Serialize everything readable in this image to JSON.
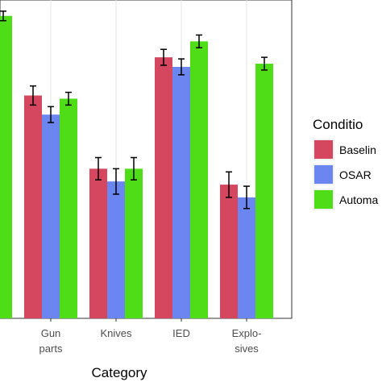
{
  "chart_data": {
    "type": "bar",
    "xlabel": "Category",
    "ylabel": "",
    "categories": [
      {
        "lines": [
          "s"
        ]
      },
      {
        "lines": [
          "Gun",
          "parts"
        ]
      },
      {
        "lines": [
          "Knives"
        ]
      },
      {
        "lines": [
          "IED"
        ]
      },
      {
        "lines": [
          "Explo-",
          "sives"
        ]
      }
    ],
    "ylim": [
      0,
      1
    ],
    "grid": true,
    "legend": {
      "title": "Conditio",
      "placement": "right",
      "entries": [
        "Baselin",
        "OSAR",
        "Automa"
      ]
    },
    "series": [
      {
        "name": "Baselin",
        "color": "#d4475f",
        "values": [
          null,
          0.7,
          0.47,
          0.82,
          0.42
        ],
        "err": [
          null,
          0.03,
          0.035,
          0.025,
          0.04
        ]
      },
      {
        "name": "OSAR",
        "color": "#6b86f0",
        "values": [
          null,
          0.64,
          0.43,
          0.79,
          0.38
        ],
        "err": [
          null,
          0.025,
          0.04,
          0.025,
          0.035
        ]
      },
      {
        "name": "Automa",
        "color": "#4fdd17",
        "values": [
          0.95,
          0.69,
          0.47,
          0.87,
          0.8
        ],
        "err": [
          0.015,
          0.02,
          0.035,
          0.02,
          0.02
        ]
      }
    ]
  }
}
